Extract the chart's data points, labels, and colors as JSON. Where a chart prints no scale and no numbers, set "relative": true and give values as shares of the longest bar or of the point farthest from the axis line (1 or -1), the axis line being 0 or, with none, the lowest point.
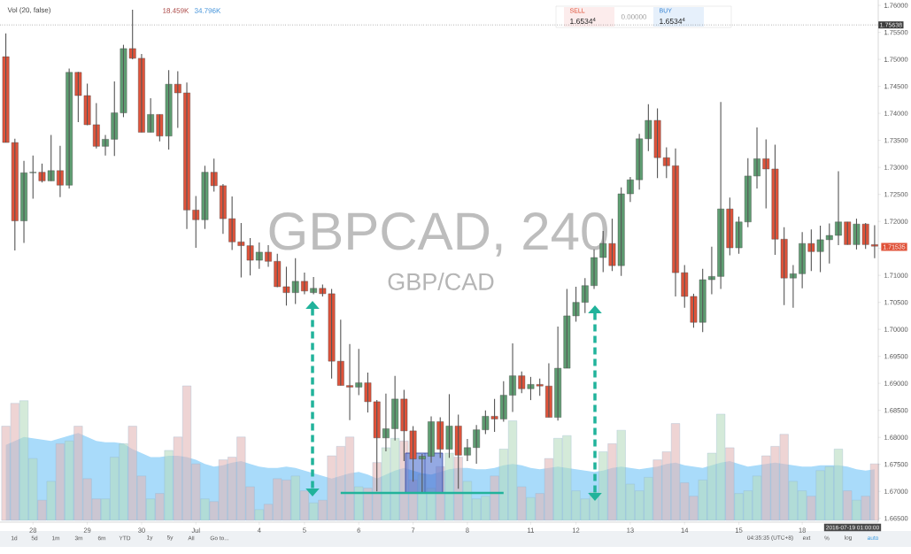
{
  "chart_data": [
    {
      "type": "candlestick",
      "title": "GBPCAD, 240",
      "subtitle": "GBP/CAD",
      "categories": [
        null,
        null,
        null,
        "28",
        null,
        null,
        null,
        null,
        null,
        "29",
        null,
        null,
        null,
        null,
        null,
        "30",
        null,
        null,
        null,
        null,
        null,
        "Jul",
        null,
        null,
        null,
        null,
        null,
        null,
        "4",
        null,
        null,
        null,
        null,
        "5",
        null,
        null,
        null,
        null,
        null,
        "6",
        null,
        null,
        null,
        null,
        null,
        "7",
        null,
        null,
        null,
        null,
        null,
        "8",
        null,
        null,
        null,
        null,
        null,
        null,
        "11",
        null,
        null,
        null,
        null,
        "12",
        null,
        null,
        null,
        null,
        null,
        "13",
        null,
        null,
        null,
        null,
        null,
        "14",
        null,
        null,
        null,
        null,
        null,
        "15",
        null,
        null,
        null,
        null,
        null,
        null,
        "18",
        null,
        null,
        null,
        null,
        null,
        null,
        null,
        null
      ],
      "ohlc": [
        [
          1.7505,
          1.7548,
          1.7346,
          1.7346
        ],
        [
          1.7346,
          1.7353,
          1.7146,
          1.7201
        ],
        [
          1.7201,
          1.7312,
          1.716,
          1.729
        ],
        [
          1.729,
          1.7322,
          1.7242,
          1.7291
        ],
        [
          1.7291,
          1.7307,
          1.7272,
          1.7275
        ],
        [
          1.7275,
          1.736,
          1.7275,
          1.7294
        ],
        [
          1.7294,
          1.734,
          1.7245,
          1.7267
        ],
        [
          1.7267,
          1.7483,
          1.7261,
          1.7476
        ],
        [
          1.7476,
          1.7477,
          1.7384,
          1.7433
        ],
        [
          1.7433,
          1.7455,
          1.7378,
          1.7379
        ],
        [
          1.7379,
          1.7419,
          1.7335,
          1.7339
        ],
        [
          1.7339,
          1.736,
          1.7322,
          1.7352
        ],
        [
          1.7352,
          1.7459,
          1.7321,
          1.7401
        ],
        [
          1.7401,
          1.7527,
          1.7393,
          1.752
        ],
        [
          1.752,
          1.7592,
          1.75,
          1.7502
        ],
        [
          1.7502,
          1.751,
          1.7365,
          1.7365
        ],
        [
          1.7365,
          1.7428,
          1.7365,
          1.7398
        ],
        [
          1.7398,
          1.7398,
          1.7348,
          1.7358
        ],
        [
          1.7358,
          1.748,
          1.7333,
          1.7454
        ],
        [
          1.7454,
          1.7478,
          1.7373,
          1.7438
        ],
        [
          1.7438,
          1.7457,
          1.7186,
          1.7221
        ],
        [
          1.7221,
          1.7247,
          1.7151,
          1.7203
        ],
        [
          1.7203,
          1.7303,
          1.7186,
          1.7291
        ],
        [
          1.7291,
          1.7316,
          1.7255,
          1.7266
        ],
        [
          1.7266,
          1.7269,
          1.7177,
          1.7205
        ],
        [
          1.7205,
          1.7246,
          1.7147,
          1.7162
        ],
        [
          1.7162,
          1.7197,
          1.7096,
          1.7155
        ],
        [
          1.7155,
          1.7169,
          1.71,
          1.7128
        ],
        [
          1.7128,
          1.7161,
          1.7112,
          1.7143
        ],
        [
          1.7143,
          1.7156,
          1.7116,
          1.7126
        ],
        [
          1.7126,
          1.714,
          1.7078,
          1.7079
        ],
        [
          1.7079,
          1.7116,
          1.7044,
          1.7068
        ],
        [
          1.7068,
          1.7132,
          1.7047,
          1.7089
        ],
        [
          1.7089,
          1.7105,
          1.7065,
          1.7071
        ],
        [
          1.7068,
          1.7097,
          1.7065,
          1.7076
        ],
        [
          1.7076,
          1.7083,
          1.7061,
          1.7066
        ],
        [
          1.7066,
          1.7075,
          1.6909,
          1.6941
        ],
        [
          1.6941,
          1.7018,
          1.6896,
          1.6896
        ],
        [
          1.6896,
          1.6973,
          1.6832,
          1.6893
        ],
        [
          1.6893,
          1.6964,
          1.6878,
          1.6901
        ],
        [
          1.6901,
          1.692,
          1.6846,
          1.6866
        ],
        [
          1.6866,
          1.6869,
          1.67,
          1.6799
        ],
        [
          1.6799,
          1.6881,
          1.6774,
          1.6816
        ],
        [
          1.6816,
          1.6914,
          1.6794,
          1.6871
        ],
        [
          1.6871,
          1.6888,
          1.6756,
          1.6812
        ],
        [
          1.6812,
          1.6821,
          1.6718,
          1.676
        ],
        [
          1.676,
          1.6769,
          1.6698,
          1.6765
        ],
        [
          1.6765,
          1.6839,
          1.6753,
          1.6829
        ],
        [
          1.6829,
          1.6837,
          1.6762,
          1.6778
        ],
        [
          1.6778,
          1.688,
          1.6762,
          1.6821
        ],
        [
          1.6821,
          1.6842,
          1.6705,
          1.6767
        ],
        [
          1.6767,
          1.6797,
          1.6756,
          1.6781
        ],
        [
          1.6781,
          1.6823,
          1.6751,
          1.6814
        ],
        [
          1.6814,
          1.685,
          1.6806,
          1.6839
        ],
        [
          1.6839,
          1.6871,
          1.681,
          1.6834
        ],
        [
          1.6834,
          1.6904,
          1.6829,
          1.6878
        ],
        [
          1.6878,
          1.6974,
          1.6847,
          1.6914
        ],
        [
          1.6914,
          1.6922,
          1.6882,
          1.689
        ],
        [
          1.689,
          1.6912,
          1.6869,
          1.6898
        ],
        [
          1.6898,
          1.6909,
          1.6877,
          1.6895
        ],
        [
          1.6895,
          1.6937,
          1.6837,
          1.6837
        ],
        [
          1.6837,
          1.7005,
          1.6831,
          1.6928
        ],
        [
          1.6928,
          1.7075,
          1.6928,
          1.7025
        ],
        [
          1.7025,
          1.7079,
          1.7014,
          1.705
        ],
        [
          1.705,
          1.7095,
          1.703,
          1.7081
        ],
        [
          1.7081,
          1.7148,
          1.7075,
          1.7133
        ],
        [
          1.7133,
          1.7182,
          1.7106,
          1.7159
        ],
        [
          1.7159,
          1.7205,
          1.7108,
          1.7118
        ],
        [
          1.7118,
          1.7263,
          1.7099,
          1.7251
        ],
        [
          1.7251,
          1.7282,
          1.7236,
          1.7277
        ],
        [
          1.7277,
          1.7362,
          1.7259,
          1.7353
        ],
        [
          1.7353,
          1.7417,
          1.733,
          1.7387
        ],
        [
          1.7387,
          1.7409,
          1.728,
          1.7318
        ],
        [
          1.7318,
          1.7337,
          1.728,
          1.7303
        ],
        [
          1.7303,
          1.7335,
          1.7061,
          1.7105
        ],
        [
          1.7105,
          1.7119,
          1.704,
          1.7061
        ],
        [
          1.7061,
          1.7066,
          1.7003,
          1.7013
        ],
        [
          1.7013,
          1.7112,
          1.6995,
          1.7092
        ],
        [
          1.7092,
          1.7153,
          1.7065,
          1.7098
        ],
        [
          1.7098,
          1.7421,
          1.7075,
          1.7223
        ],
        [
          1.7223,
          1.7244,
          1.7137,
          1.7151
        ],
        [
          1.7151,
          1.7209,
          1.714,
          1.7199
        ],
        [
          1.7199,
          1.7317,
          1.7189,
          1.7284
        ],
        [
          1.7284,
          1.7374,
          1.7261,
          1.7316
        ],
        [
          1.7316,
          1.7352,
          1.7224,
          1.7297
        ],
        [
          1.7297,
          1.7342,
          1.7138,
          1.7167
        ],
        [
          1.7167,
          1.7189,
          1.7045,
          1.7095
        ],
        [
          1.7095,
          1.7119,
          1.704,
          1.7103
        ],
        [
          1.7103,
          1.718,
          1.7076,
          1.7159
        ],
        [
          1.7159,
          1.7185,
          1.7108,
          1.7144
        ],
        [
          1.7144,
          1.7192,
          1.7106,
          1.7166
        ],
        [
          1.7166,
          1.7196,
          1.7122,
          1.7174
        ],
        [
          1.7174,
          1.7293,
          1.7156,
          1.7199
        ],
        [
          1.7199,
          1.7199,
          1.7157,
          1.7157
        ],
        [
          1.7157,
          1.7205,
          1.7148,
          1.7195
        ],
        [
          1.7195,
          1.7197,
          1.7149,
          1.7157
        ],
        [
          1.7157,
          1.7193,
          1.7132,
          1.7154
        ]
      ],
      "colors": [
        "#e0533a",
        "#e0533a",
        "#5e9e72",
        "#5e9e72",
        "#e0533a",
        "#5e9e72",
        "#e0533a",
        "#5e9e72",
        "#e0533a",
        "#e0533a",
        "#e0533a",
        "#5e9e72",
        "#5e9e72",
        "#5e9e72",
        "#e0533a",
        "#e0533a",
        "#5e9e72",
        "#e0533a",
        "#5e9e72",
        "#e0533a",
        "#e0533a",
        "#e0533a",
        "#5e9e72",
        "#e0533a",
        "#e0533a",
        "#e0533a",
        "#e0533a",
        "#e0533a",
        "#5e9e72",
        "#e0533a",
        "#e0533a",
        "#e0533a",
        "#5e9e72",
        "#e0533a",
        "#5e9e72",
        "#e0533a",
        "#e0533a",
        "#e0533a",
        "#e0533a",
        "#5e9e72",
        "#e0533a",
        "#e0533a",
        "#5e9e72",
        "#5e9e72",
        "#e0533a",
        "#e0533a",
        "#5e9e72",
        "#5e9e72",
        "#e0533a",
        "#5e9e72",
        "#e0533a",
        "#5e9e72",
        "#5e9e72",
        "#5e9e72",
        "#e0533a",
        "#5e9e72",
        "#5e9e72",
        "#e0533a",
        "#5e9e72",
        "#e0533a",
        "#e0533a",
        "#5e9e72",
        "#5e9e72",
        "#5e9e72",
        "#5e9e72",
        "#5e9e72",
        "#5e9e72",
        "#e0533a",
        "#5e9e72",
        "#5e9e72",
        "#5e9e72",
        "#5e9e72",
        "#e0533a",
        "#e0533a",
        "#e0533a",
        "#e0533a",
        "#e0533a",
        "#5e9e72",
        "#5e9e72",
        "#5e9e72",
        "#e0533a",
        "#5e9e72",
        "#5e9e72",
        "#5e9e72",
        "#e0533a",
        "#e0533a",
        "#e0533a",
        "#5e9e72",
        "#5e9e72",
        "#e0533a",
        "#5e9e72",
        "#5e9e72",
        "#5e9e72",
        "#e0533a",
        "#5e9e72",
        "#e0533a",
        "#e0533a"
      ],
      "ylim": [
        1.6643,
        1.761
      ],
      "series": [
        {
          "type": "line",
          "color": "#21b39b",
          "values": [
            null,
            null,
            null,
            null,
            null,
            null,
            null,
            null,
            null,
            null,
            null,
            null,
            null,
            null,
            null,
            null,
            null,
            null,
            null,
            null,
            null,
            null,
            null,
            null,
            null,
            null,
            null,
            null,
            null,
            null,
            null,
            null,
            null,
            null,
            null,
            null,
            null,
            1.6697,
            1.6697,
            1.6697,
            1.6697,
            1.6697,
            1.6697,
            1.6697,
            1.6697,
            1.6697,
            1.6697,
            1.6697,
            1.6697,
            1.6697,
            1.6697,
            1.6697,
            1.6697,
            1.6697,
            1.6697,
            1.6697,
            null,
            null,
            null,
            null,
            null,
            null,
            null,
            null,
            null,
            null,
            null,
            null,
            null,
            null,
            null,
            null,
            null,
            null,
            null,
            null,
            null,
            null,
            null,
            null,
            null,
            null,
            null,
            null,
            null,
            null,
            null,
            null,
            null,
            null,
            null,
            null,
            null,
            null,
            null,
            null,
            null
          ]
        }
      ],
      "yticks": [
        {
          "value": 1.665,
          "label": "1.66500"
        },
        {
          "value": 1.67,
          "label": "1.67000"
        },
        {
          "value": 1.675,
          "label": "1.67500"
        },
        {
          "value": 1.68,
          "label": "1.68000"
        },
        {
          "value": 1.685,
          "label": "1.68500"
        },
        {
          "value": 1.69,
          "label": "1.69000"
        },
        {
          "value": 1.695,
          "label": "1.69500"
        },
        {
          "value": 1.7,
          "label": "1.70000"
        },
        {
          "value": 1.705,
          "label": "1.70500"
        },
        {
          "value": 1.71,
          "label": "1.71000"
        },
        {
          "value": 1.715,
          "label": null
        },
        {
          "value": 1.72,
          "label": "1.72000"
        },
        {
          "value": 1.725,
          "label": "1.72500"
        },
        {
          "value": 1.73,
          "label": "1.73000"
        },
        {
          "value": 1.735,
          "label": "1.73500"
        },
        {
          "value": 1.74,
          "label": "1.74000"
        },
        {
          "value": 1.745,
          "label": "1.74500"
        },
        {
          "value": 1.75,
          "label": "1.75000"
        },
        {
          "value": 1.755,
          "label": "1.75500"
        },
        {
          "value": 1.76,
          "label": "1.76000"
        }
      ],
      "ref_lines": [
        {
          "axis": "y",
          "value": 1.75638,
          "label": "1.75638",
          "color": "#333333",
          "line_style": "dotted"
        }
      ],
      "annotations": [
        "SELL",
        "1.6534$^{4}$",
        "0.00000",
        "BUY",
        "1.6534$^{4}$",
        "1.71535",
        "2016-07-19 01:00:00",
        "1d",
        "5d",
        "1m",
        "3m",
        "6m",
        "YTD",
        "1y",
        "5y",
        "All",
        "Go to...",
        "04:35:35 (UTC+8)",
        "ext",
        "%",
        "log",
        "auto"
      ]
    },
    {
      "type": "bar",
      "title": "Vol (20, false)",
      "relative": true,
      "tick_labels": false,
      "categories": [
        null,
        null,
        null,
        null,
        null,
        null,
        null,
        null,
        null,
        null,
        null,
        null,
        null,
        null,
        null,
        null,
        null,
        null,
        null,
        null,
        null,
        null,
        null,
        null,
        null,
        null,
        null,
        null,
        null,
        null,
        null,
        null,
        null,
        null,
        null,
        null,
        null,
        null,
        null,
        null,
        null,
        null,
        null,
        null,
        null,
        null,
        null,
        null,
        null,
        null,
        null,
        null,
        null,
        null,
        null,
        null,
        null,
        null,
        null,
        null,
        null,
        null,
        null,
        null,
        null,
        null,
        null,
        null,
        null,
        null,
        null,
        null,
        null,
        null,
        null,
        null,
        null,
        null,
        null,
        null,
        null,
        null,
        null,
        null,
        null,
        null,
        null,
        null,
        null,
        null,
        null,
        null,
        null,
        null,
        null,
        null,
        null
      ],
      "series": [
        {
          "type": "area",
          "color": "#a9dbfa",
          "values": [
            0.56,
            0.59,
            0.62,
            0.61,
            0.6,
            0.59,
            0.61,
            0.63,
            0.65,
            0.62,
            0.59,
            0.58,
            0.58,
            0.57,
            0.53,
            0.5,
            0.47,
            0.47,
            0.48,
            0.48,
            0.47,
            0.45,
            0.42,
            0.4,
            0.41,
            0.43,
            0.44,
            0.42,
            0.4,
            0.39,
            0.39,
            0.4,
            0.39,
            0.37,
            0.35,
            0.33,
            0.31,
            0.33,
            0.35,
            0.36,
            0.34,
            0.31,
            0.34,
            0.37,
            0.39,
            0.37,
            0.35,
            0.34,
            0.36,
            0.38,
            0.39,
            0.39,
            0.38,
            0.38,
            0.39,
            0.41,
            0.42,
            0.41,
            0.39,
            0.38,
            0.39,
            0.4,
            0.39,
            0.38,
            0.37,
            0.36,
            0.37,
            0.39,
            0.4,
            0.39,
            0.38,
            0.39,
            0.4,
            0.42,
            0.43,
            0.41,
            0.4,
            0.39,
            0.41,
            0.43,
            0.44,
            0.42,
            0.4,
            0.41,
            0.42,
            0.43,
            0.42,
            0.41,
            0.4,
            0.4,
            0.41,
            0.41,
            0.41,
            0.4,
            0.38,
            0.37,
            0.38
          ]
        },
        {
          "type": "bar",
          "values": [
            0.7,
            0.87,
            0.89,
            0.46,
            0.15,
            0.29,
            0.57,
            0.59,
            0.7,
            0.31,
            0.16,
            0.16,
            0.47,
            0.57,
            0.7,
            0.33,
            0.16,
            0.2,
            0.52,
            0.62,
            1,
            0.42,
            0.16,
            0.14,
            0.45,
            0.47,
            0.62,
            0.25,
            0.08,
            0.12,
            0.31,
            0.3,
            0.33,
            0.22,
            0.13,
            0.15,
            0.48,
            0.55,
            0.62,
            0.25,
            0.24,
            0.43,
            0.54,
            0.61,
            0.59,
            0.3,
            0.34,
            0.24,
            0.4,
            0.5,
            0.47,
            0.29,
            0.16,
            0.18,
            0.33,
            0.53,
            0.74,
            0.25,
            0.17,
            0.2,
            0.46,
            0.61,
            0.63,
            0.22,
            0.16,
            0.21,
            0.51,
            0.57,
            0.67,
            0.27,
            0.22,
            0.32,
            0.45,
            0.51,
            0.72,
            0.28,
            0.18,
            0.3,
            0.5,
            0.79,
            0.54,
            0.2,
            0.22,
            0.33,
            0.48,
            0.55,
            0.64,
            0.29,
            0.22,
            0.18,
            0.37,
            0.4,
            0.53,
            0.22,
            0.15,
            0.18,
            0.42
          ],
          "colors": [
            "#e3b7b7",
            "#e3b7b7",
            "#b7dcbf",
            "#b7dcbf",
            "#e3b7b7",
            "#b7dcbf",
            "#e3b7b7",
            "#b7dcbf",
            "#e3b7b7",
            "#e3b7b7",
            "#e3b7b7",
            "#b7dcbf",
            "#b7dcbf",
            "#b7dcbf",
            "#e3b7b7",
            "#e3b7b7",
            "#b7dcbf",
            "#e3b7b7",
            "#b7dcbf",
            "#e3b7b7",
            "#e3b7b7",
            "#e3b7b7",
            "#b7dcbf",
            "#e3b7b7",
            "#e3b7b7",
            "#e3b7b7",
            "#e3b7b7",
            "#e3b7b7",
            "#b7dcbf",
            "#e3b7b7",
            "#e3b7b7",
            "#e3b7b7",
            "#b7dcbf",
            "#e3b7b7",
            "#b7dcbf",
            "#e3b7b7",
            "#e3b7b7",
            "#e3b7b7",
            "#e3b7b7",
            "#b7dcbf",
            "#e3b7b7",
            "#e3b7b7",
            "#b7dcbf",
            "#b7dcbf",
            "#e3b7b7",
            "#e3b7b7",
            "#b7dcbf",
            "#b7dcbf",
            "#e3b7b7",
            "#b7dcbf",
            "#e3b7b7",
            "#b7dcbf",
            "#b7dcbf",
            "#b7dcbf",
            "#e3b7b7",
            "#b7dcbf",
            "#b7dcbf",
            "#e3b7b7",
            "#b7dcbf",
            "#e3b7b7",
            "#e3b7b7",
            "#b7dcbf",
            "#b7dcbf",
            "#b7dcbf",
            "#b7dcbf",
            "#b7dcbf",
            "#b7dcbf",
            "#e3b7b7",
            "#b7dcbf",
            "#b7dcbf",
            "#b7dcbf",
            "#b7dcbf",
            "#e3b7b7",
            "#e3b7b7",
            "#e3b7b7",
            "#e3b7b7",
            "#e3b7b7",
            "#b7dcbf",
            "#b7dcbf",
            "#b7dcbf",
            "#e3b7b7",
            "#b7dcbf",
            "#b7dcbf",
            "#b7dcbf",
            "#e3b7b7",
            "#e3b7b7",
            "#e3b7b7",
            "#b7dcbf",
            "#b7dcbf",
            "#e3b7b7",
            "#b7dcbf",
            "#b7dcbf",
            "#b7dcbf",
            "#e3b7b7",
            "#b7dcbf",
            "#e3b7b7",
            "#e3b7b7"
          ]
        }
      ],
      "annotations": [
        "18.459K",
        "34.796K"
      ]
    }
  ]
}
